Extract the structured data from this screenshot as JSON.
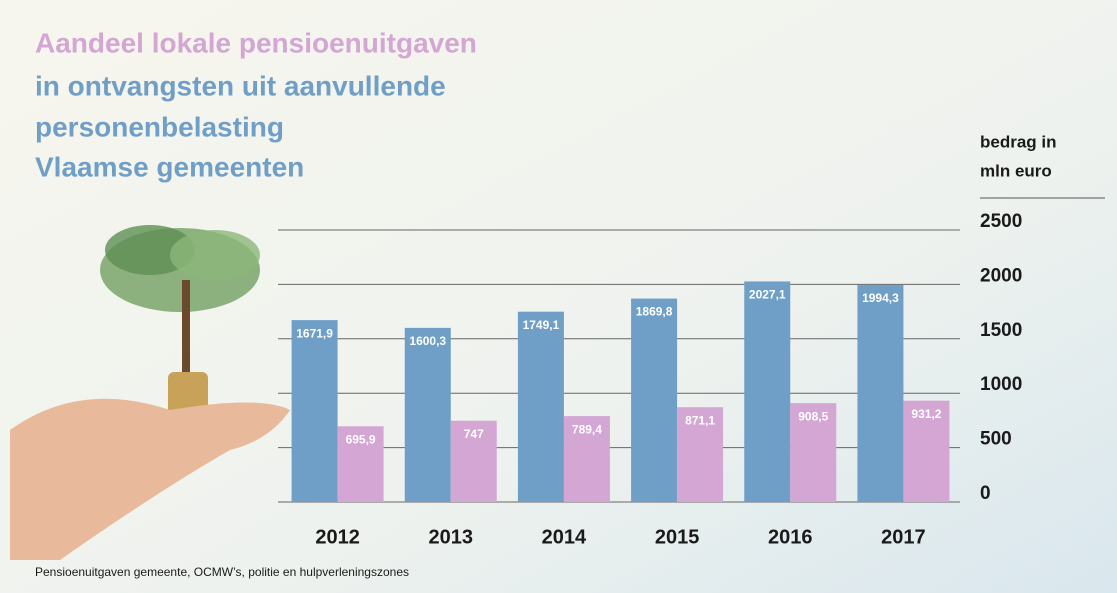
{
  "chart_data": {
    "type": "bar",
    "title": [
      "Aandeel lokale pensioenuitgaven",
      "in ontvangsten uit aanvullende",
      "personenbelasting",
      "Vlaamse gemeenten"
    ],
    "y_label": [
      "bedrag in",
      "mln euro"
    ],
    "footnote": "Pensioenuitgaven gemeente, OCMW’s, politie en hulpverleningszones",
    "categories": [
      "2012",
      "2013",
      "2014",
      "2015",
      "2016",
      "2017"
    ],
    "series": [
      {
        "color": "#6f9fc6",
        "values": [
          1671.9,
          1600.3,
          1749.1,
          1869.8,
          2027.1,
          1994.3
        ],
        "value_labels": [
          "1671,9",
          "1600,3",
          "1749,1",
          "1869,8",
          "2027,1",
          "1994,3"
        ]
      },
      {
        "color": "#d3a6d3",
        "values": [
          695.9,
          747,
          789.4,
          871.1,
          908.5,
          931.2
        ],
        "value_labels": [
          "695,9",
          "747",
          "789,4",
          "871,1",
          "908,5",
          "931,2"
        ]
      }
    ],
    "ylim": [
      0,
      2500
    ],
    "yticks": [
      0,
      500,
      1000,
      1500,
      2000,
      2500
    ],
    "grid": true
  }
}
